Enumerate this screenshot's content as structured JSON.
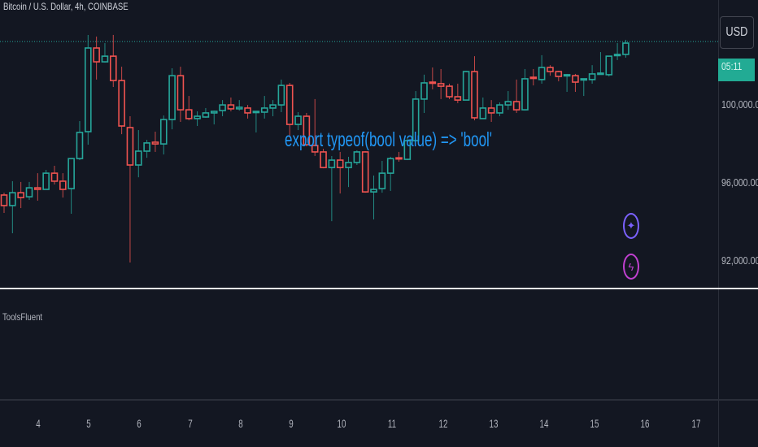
{
  "header": {
    "title": "Bitcoin / U.S. Dollar, 4h, COINBASE"
  },
  "price_axis": {
    "currency_button": "USD",
    "countdown": "05:11",
    "labels": [
      "100,000.00",
      "96,000.00",
      "92,000.00"
    ]
  },
  "indicator_pane": {
    "label": "ToolsFluent"
  },
  "icons": [
    {
      "name": "sparkle-icon",
      "color": "#7b61ff"
    },
    {
      "name": "lightning-icon",
      "color": "#c040d0"
    }
  ],
  "chart_data": {
    "type": "candlestick",
    "title": "Bitcoin / U.S. Dollar, 4h, COINBASE",
    "annotation": "export typeof(bool value) => 'bool'",
    "x_ticks": [
      "4",
      "5",
      "6",
      "7",
      "8",
      "9",
      "10",
      "11",
      "12",
      "13",
      "14",
      "15",
      "16",
      "17"
    ],
    "y_ticks": [
      100000,
      96000,
      92000
    ],
    "ylim": [
      90460,
      105420
    ],
    "current_price": 103290,
    "colors": {
      "up": "#26a69a",
      "down": "#ef5350",
      "annotation": "#2196f3",
      "price_line": "#26a69a"
    },
    "ohlc": [
      [
        95420,
        95540,
        94500,
        94880
      ],
      [
        94880,
        96130,
        93460,
        95540
      ],
      [
        95540,
        96090,
        94750,
        95290
      ],
      [
        95330,
        96090,
        95170,
        95790
      ],
      [
        95790,
        96540,
        95130,
        95710
      ],
      [
        95710,
        96710,
        95710,
        96540
      ],
      [
        96540,
        96920,
        95960,
        96130
      ],
      [
        96130,
        96540,
        95290,
        95710
      ],
      [
        95750,
        97290,
        94460,
        97290
      ],
      [
        97290,
        99210,
        97210,
        98630
      ],
      [
        98670,
        103630,
        98000,
        102960
      ],
      [
        102960,
        103545,
        101340,
        102250
      ],
      [
        102250,
        103210,
        102210,
        102540
      ],
      [
        102540,
        103630,
        100960,
        101290
      ],
      [
        101290,
        102000,
        98540,
        98960
      ],
      [
        98880,
        99460,
        91960,
        96960
      ],
      [
        96960,
        98750,
        96330,
        97670
      ],
      [
        97670,
        98250,
        97330,
        98090
      ],
      [
        98130,
        98670,
        97630,
        98040
      ],
      [
        98040,
        99500,
        97500,
        99290
      ],
      [
        99290,
        101920,
        98790,
        101540
      ],
      [
        101540,
        102000,
        99170,
        99790
      ],
      [
        99790,
        100500,
        99250,
        99340
      ],
      [
        99340,
        99710,
        98960,
        99460
      ],
      [
        99420,
        99880,
        99380,
        99630
      ],
      [
        99630,
        99750,
        99040,
        99710
      ],
      [
        99750,
        100290,
        99460,
        100040
      ],
      [
        100040,
        100420,
        99710,
        99840
      ],
      [
        99840,
        100290,
        99750,
        99920
      ],
      [
        99880,
        100040,
        99340,
        99630
      ],
      [
        99670,
        99710,
        98630,
        99710
      ],
      [
        99670,
        100500,
        99340,
        99880
      ],
      [
        99880,
        100290,
        99460,
        100040
      ],
      [
        100040,
        101340,
        99670,
        101040
      ],
      [
        101040,
        101170,
        98420,
        99040
      ],
      [
        99040,
        99670,
        98750,
        99460
      ],
      [
        99460,
        99630,
        97920,
        98000
      ],
      [
        97960,
        100340,
        97420,
        97630
      ],
      [
        97630,
        97790,
        96790,
        96830
      ],
      [
        96830,
        97420,
        94080,
        97210
      ],
      [
        97210,
        97630,
        95500,
        96830
      ],
      [
        96830,
        97380,
        95830,
        97090
      ],
      [
        97090,
        97710,
        96960,
        97630
      ],
      [
        97630,
        97670,
        95540,
        95580
      ],
      [
        95580,
        96420,
        94170,
        95710
      ],
      [
        95750,
        97170,
        95540,
        96540
      ],
      [
        96540,
        97380,
        95630,
        97290
      ],
      [
        97330,
        97630,
        97130,
        97290
      ],
      [
        97250,
        98340,
        97210,
        98210
      ],
      [
        98210,
        100750,
        98210,
        100340
      ],
      [
        100340,
        101590,
        99630,
        101170
      ],
      [
        101210,
        101960,
        100840,
        101170
      ],
      [
        101130,
        101880,
        100340,
        101000
      ],
      [
        101000,
        101130,
        100340,
        100460
      ],
      [
        100460,
        101130,
        100130,
        100290
      ],
      [
        100290,
        101790,
        100290,
        101750
      ],
      [
        101750,
        102540,
        99250,
        99380
      ],
      [
        99340,
        100420,
        99340,
        99880
      ],
      [
        99880,
        100290,
        99170,
        99630
      ],
      [
        99630,
        100170,
        99460,
        100040
      ],
      [
        100040,
        100750,
        99790,
        100210
      ],
      [
        100210,
        101340,
        99630,
        99790
      ],
      [
        99790,
        101880,
        99750,
        101380
      ],
      [
        101460,
        101880,
        101040,
        101420
      ],
      [
        101340,
        102590,
        101130,
        101960
      ],
      [
        101960,
        102080,
        101540,
        101750
      ],
      [
        101750,
        101790,
        101250,
        101500
      ],
      [
        101540,
        101630,
        100710,
        101590
      ],
      [
        101540,
        101630,
        100710,
        101210
      ],
      [
        101340,
        101380,
        100500,
        101380
      ],
      [
        101340,
        102080,
        101130,
        101630
      ],
      [
        101630,
        102750,
        101590,
        101670
      ],
      [
        101590,
        102540,
        101500,
        102540
      ],
      [
        102590,
        103210,
        102340,
        102630
      ],
      [
        102630,
        103378,
        102460,
        103210
      ]
    ]
  }
}
